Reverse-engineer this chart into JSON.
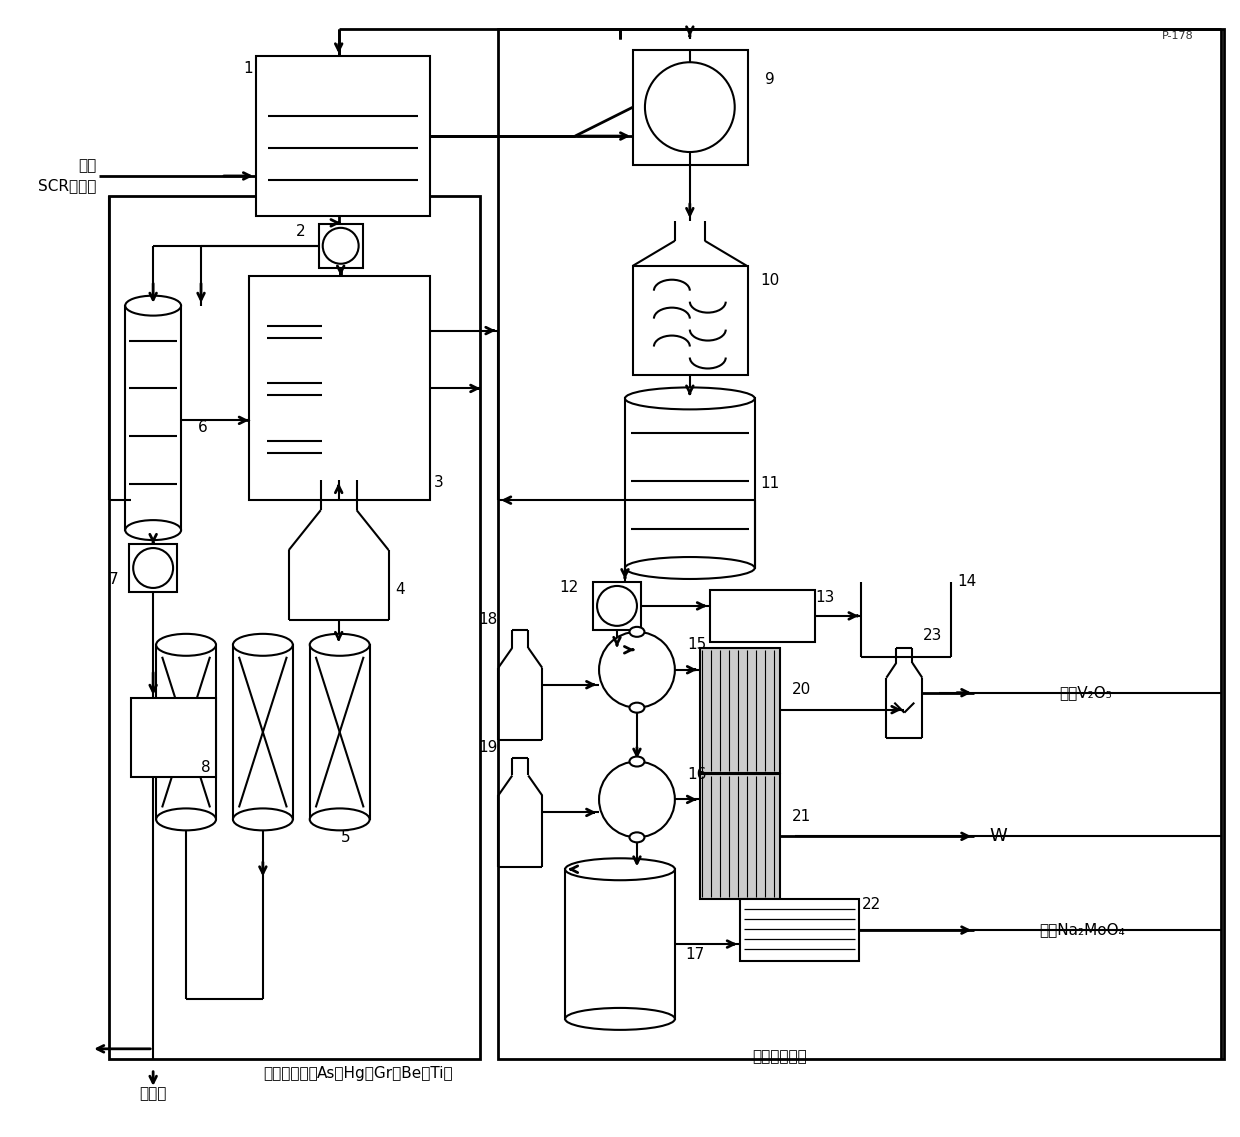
{
  "bg_color": "#ffffff",
  "line_color": "#000000",
  "lw": 1.5,
  "lw2": 2.0,
  "labels": {
    "input_line1": "废弃",
    "input_line2": "SCR催化剂",
    "output1": "高纯V₂O₅",
    "output2": "W",
    "output3": "高纯Na₂MoO₄",
    "waste_water": "废水处理系统",
    "waste_solid": "废固处理系统",
    "brick": "免烧砖",
    "metals": "As、Hg、Gr、Be、Ti等",
    "p178": "P-178"
  }
}
